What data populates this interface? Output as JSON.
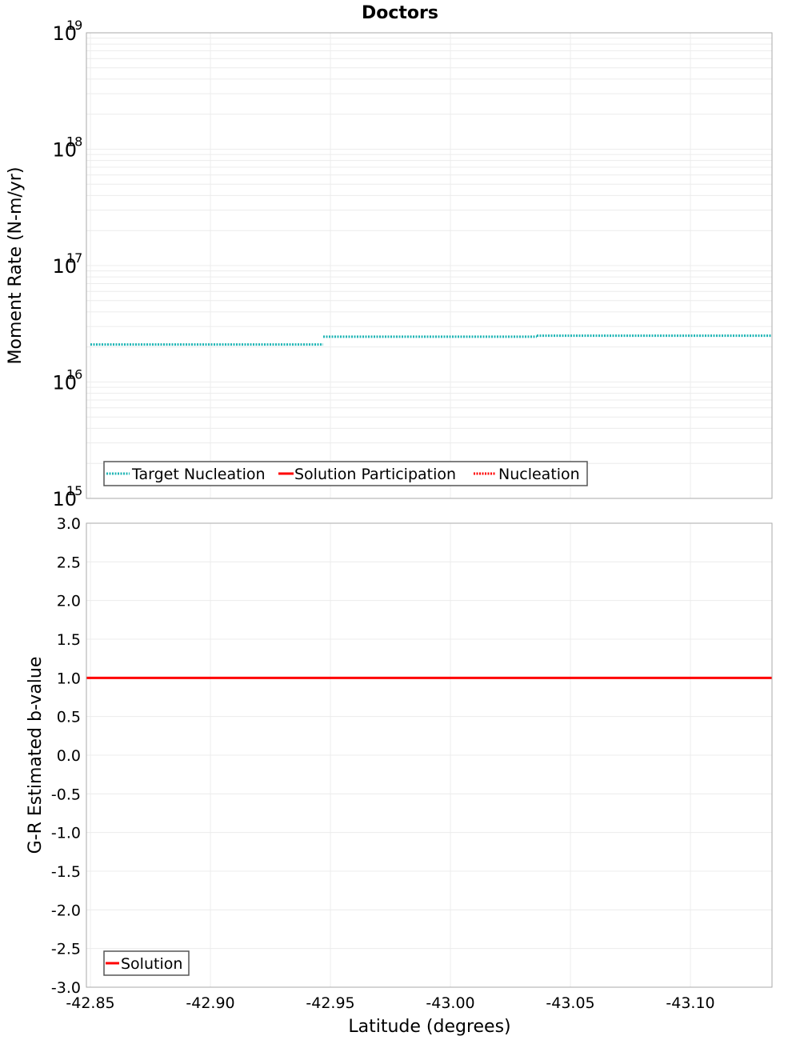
{
  "chart_data": [
    {
      "type": "line",
      "title": "Doctors",
      "xlabel": "Latitude (degrees)",
      "ylabel": "Moment Rate (N-m/yr)",
      "yscale": "log",
      "ylim": [
        1000000000000000.0,
        1e+19
      ],
      "xlim": [
        -42.85,
        -43.134
      ],
      "y_ticks": [
        {
          "base": "10",
          "exp": "19",
          "value": 1e+19
        },
        {
          "base": "10",
          "exp": "18",
          "value": 1e+18
        },
        {
          "base": "10",
          "exp": "17",
          "value": 1e+17
        },
        {
          "base": "10",
          "exp": "16",
          "value": 1e+16
        },
        {
          "base": "10",
          "exp": "15",
          "value": 1000000000000000.0
        }
      ],
      "grid": true,
      "legend_position": "lower-left",
      "series": [
        {
          "name": "Target Nucleation",
          "style": "dotted",
          "color": "#1fb5b5",
          "segments": [
            {
              "x_start": -42.85,
              "x_end": -42.947,
              "y": 2.1e+16
            },
            {
              "x_start": -42.947,
              "x_end": -43.036,
              "y": 2.45e+16
            },
            {
              "x_start": -43.036,
              "x_end": -43.134,
              "y": 2.5e+16
            }
          ]
        },
        {
          "name": "Solution Participation",
          "style": "solid",
          "color": "#ff0000",
          "segments": []
        },
        {
          "name": "Nucleation",
          "style": "dotted",
          "color": "#ff0000",
          "segments": []
        }
      ]
    },
    {
      "type": "line",
      "xlabel": "Latitude (degrees)",
      "ylabel": "G-R Estimated b-value",
      "ylim": [
        -3.0,
        3.0
      ],
      "xlim": [
        -42.85,
        -43.134
      ],
      "y_ticks": [
        "3.0",
        "2.5",
        "2.0",
        "1.5",
        "1.0",
        "0.5",
        "0.0",
        "-0.5",
        "-1.0",
        "-1.5",
        "-2.0",
        "-2.5",
        "-3.0"
      ],
      "x_ticks": [
        "-42.85",
        "-42.90",
        "-42.95",
        "-43.00",
        "-43.05",
        "-43.10"
      ],
      "grid": true,
      "legend_position": "lower-left",
      "series": [
        {
          "name": "Solution",
          "style": "solid",
          "color": "#ff0000",
          "segments": [
            {
              "x_start": -42.85,
              "x_end": -43.134,
              "y": 1.0
            }
          ]
        }
      ]
    }
  ],
  "title": "Doctors",
  "top": {
    "ylabel": "Moment Rate (N-m/yr)",
    "legend": [
      "Target Nucleation",
      "Solution Participation",
      "Nucleation"
    ]
  },
  "bottom": {
    "ylabel": "G-R Estimated b-value",
    "legend": [
      "Solution"
    ]
  },
  "xlabel": "Latitude (degrees)",
  "colors": {
    "target": "#1fb5b5",
    "solution": "#ff0000",
    "grid": "#ececec",
    "frame": "#aaaaaa"
  }
}
